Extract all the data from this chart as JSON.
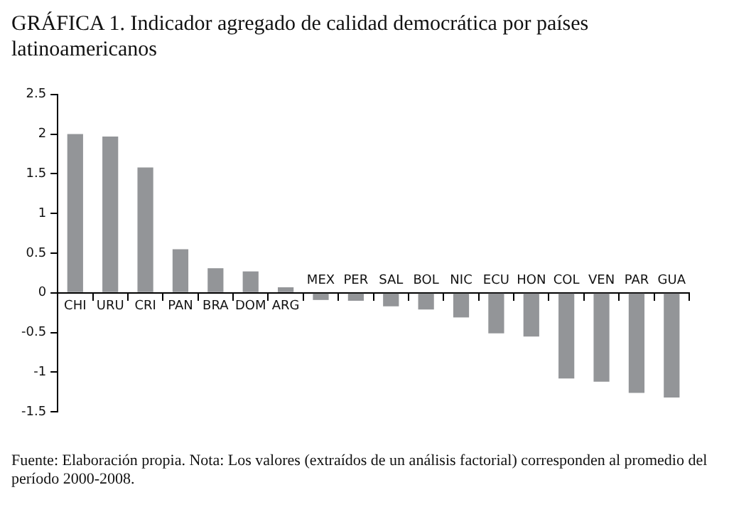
{
  "chart_data": {
    "type": "bar",
    "title": "GRÁFICA 1. Indicador agregado de calidad democrática por países latinoamericanos",
    "categories": [
      "CHI",
      "URU",
      "CRI",
      "PAN",
      "BRA",
      "DOM",
      "ARG",
      "MEX",
      "PER",
      "SAL",
      "BOL",
      "NIC",
      "ECU",
      "HON",
      "COL",
      "VEN",
      "PAR",
      "GUA"
    ],
    "values": [
      2.0,
      1.97,
      1.58,
      0.55,
      0.31,
      0.27,
      0.07,
      -0.09,
      -0.1,
      -0.17,
      -0.21,
      -0.31,
      -0.51,
      -0.55,
      -1.08,
      -1.12,
      -1.26,
      -1.32
    ],
    "color": "#939598",
    "ylim": [
      -1.5,
      2.5
    ],
    "yticks": [
      -1.5,
      -1,
      -0.5,
      0,
      0.5,
      1,
      1.5,
      2,
      2.5
    ],
    "grid": false,
    "legend": false,
    "annotations": [
      "Fuente: Elaboración propia. Nota: Los valores (extraídos de un análisis factorial) corresponden al promedio del período 2000-2008."
    ]
  }
}
